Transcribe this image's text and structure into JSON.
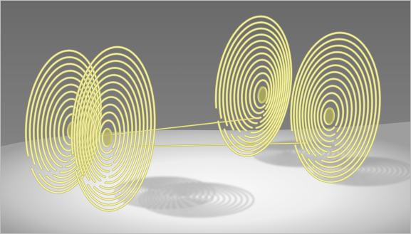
{
  "image": {
    "colors": {
      "wall_top": "#6c6c6c",
      "wall_bottom": "#8f8f8f",
      "floor_light": "#f7f7f7",
      "floor_mid": "#dcdcdc",
      "floor_edge": "#9a9a9a",
      "tube": "#e6e38a",
      "tube_highlight": "#f7f5c4",
      "tube_dark": "#b9b45a",
      "shadow": "#8a8a8a"
    },
    "objects": [
      {
        "name": "left-pair-outer-spiral"
      },
      {
        "name": "left-pair-inner-spiral"
      },
      {
        "name": "right-pair-outer-spiral"
      },
      {
        "name": "right-pair-inner-spiral"
      },
      {
        "name": "connecting-rods"
      }
    ]
  }
}
